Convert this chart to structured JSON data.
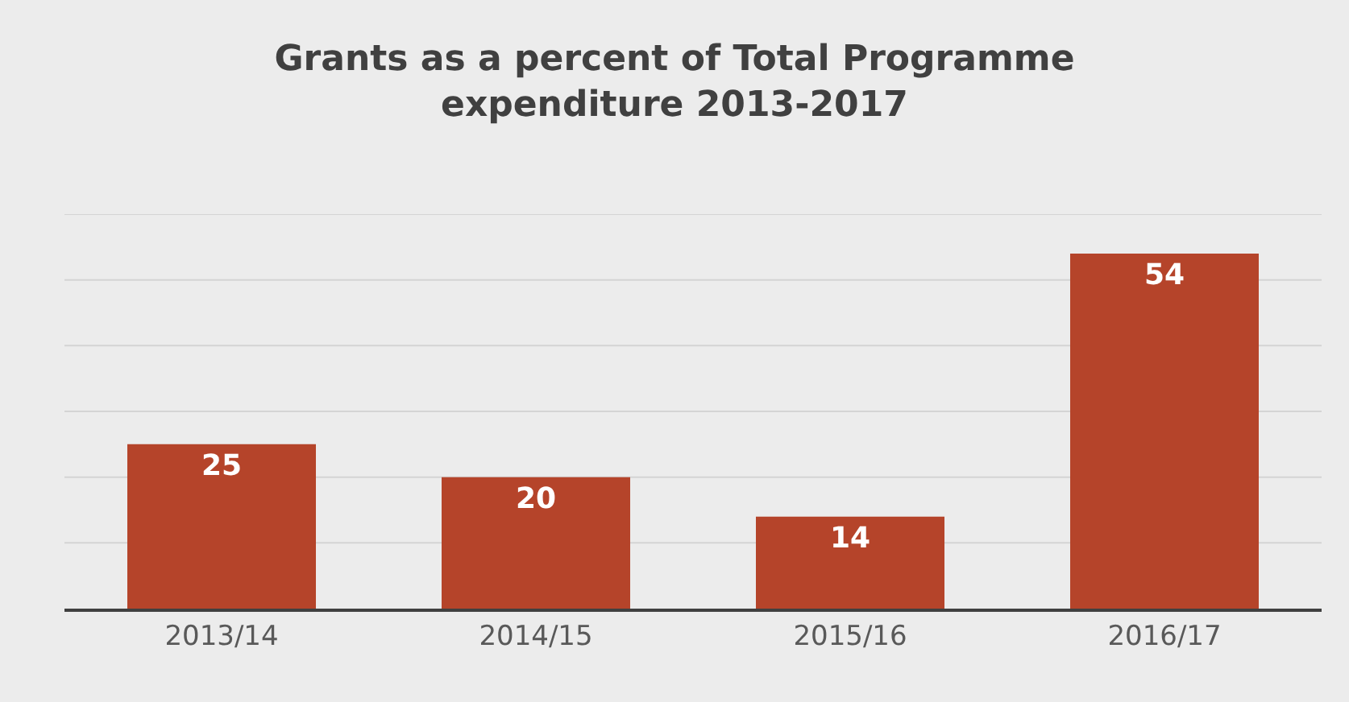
{
  "chart_data": {
    "type": "bar",
    "title": "Grants as a percent of Total Programme expenditure 2013-2017",
    "categories": [
      "2013/14",
      "2014/15",
      "2015/16",
      "2016/17"
    ],
    "values": [
      25,
      20,
      14,
      54
    ],
    "color": "#b5442a",
    "data_labels": true,
    "grid": "y",
    "tick_labels": "x",
    "ylim": [
      0,
      60
    ],
    "yticks": [
      {
        "value": 0,
        "label": null
      },
      {
        "value": 10,
        "label": null
      },
      {
        "value": 20,
        "label": null
      },
      {
        "value": 30,
        "label": null
      },
      {
        "value": 40,
        "label": null
      },
      {
        "value": 50,
        "label": null
      },
      {
        "value": 60,
        "label": null
      }
    ]
  }
}
